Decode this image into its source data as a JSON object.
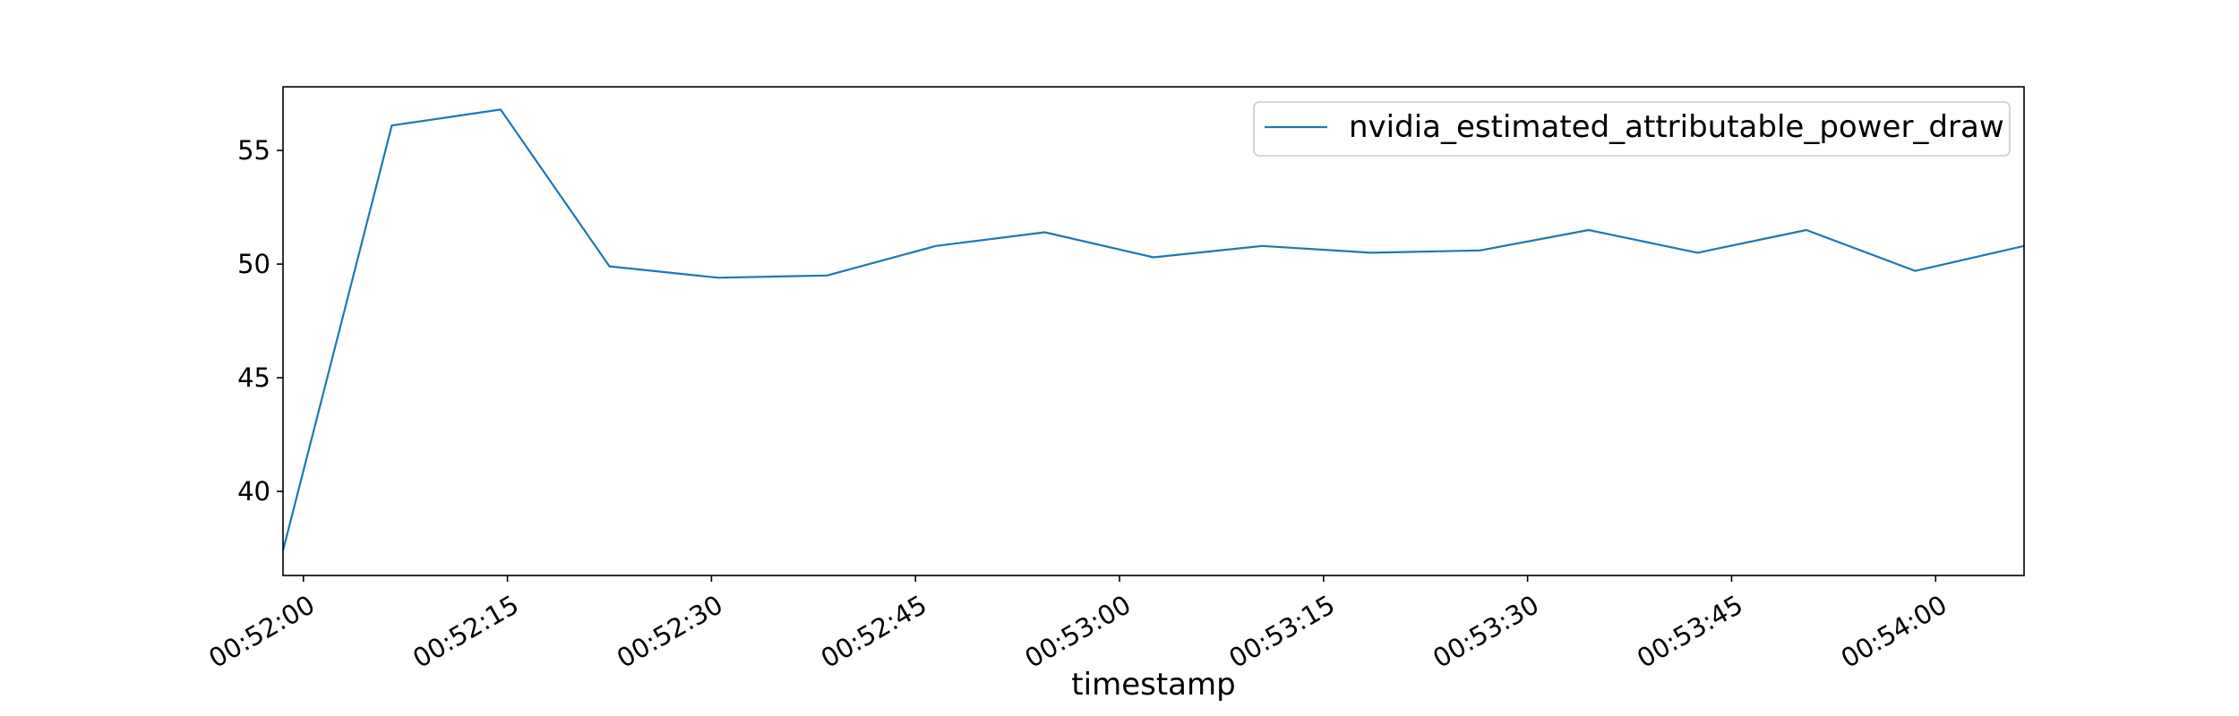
{
  "chart_data": {
    "type": "line",
    "title": "",
    "xlabel": "timestamp",
    "ylabel": "",
    "x_format": "HH:MM:SS",
    "x_ticks": [
      "00:52:00",
      "00:52:15",
      "00:52:30",
      "00:52:45",
      "00:53:00",
      "00:53:15",
      "00:53:30",
      "00:53:45",
      "00:54:00"
    ],
    "y_ticks": [
      40,
      45,
      50,
      55
    ],
    "xlim": [
      "00:51:58.5",
      "00:54:06.5"
    ],
    "ylim": [
      36.3,
      57.8
    ],
    "grid": false,
    "legend_position": "top-right",
    "series": [
      {
        "name": "nvidia_estimated_attributable_power_draw",
        "color": "#1f77b4",
        "points": [
          {
            "x": "00:51:58.5",
            "y": 37.4
          },
          {
            "x": "00:52:06.5",
            "y": 56.1
          },
          {
            "x": "00:52:14.5",
            "y": 56.8
          },
          {
            "x": "00:52:22.5",
            "y": 49.9
          },
          {
            "x": "00:52:30.5",
            "y": 49.4
          },
          {
            "x": "00:52:38.5",
            "y": 49.5
          },
          {
            "x": "00:52:46.5",
            "y": 50.8
          },
          {
            "x": "00:52:54.5",
            "y": 51.4
          },
          {
            "x": "00:53:02.5",
            "y": 50.3
          },
          {
            "x": "00:53:10.5",
            "y": 50.8
          },
          {
            "x": "00:53:18.5",
            "y": 50.5
          },
          {
            "x": "00:53:26.5",
            "y": 50.6
          },
          {
            "x": "00:53:34.5",
            "y": 51.5
          },
          {
            "x": "00:53:42.5",
            "y": 50.5
          },
          {
            "x": "00:53:50.5",
            "y": 51.5
          },
          {
            "x": "00:53:58.5",
            "y": 49.7
          },
          {
            "x": "00:54:06.5",
            "y": 50.8
          }
        ]
      }
    ]
  }
}
